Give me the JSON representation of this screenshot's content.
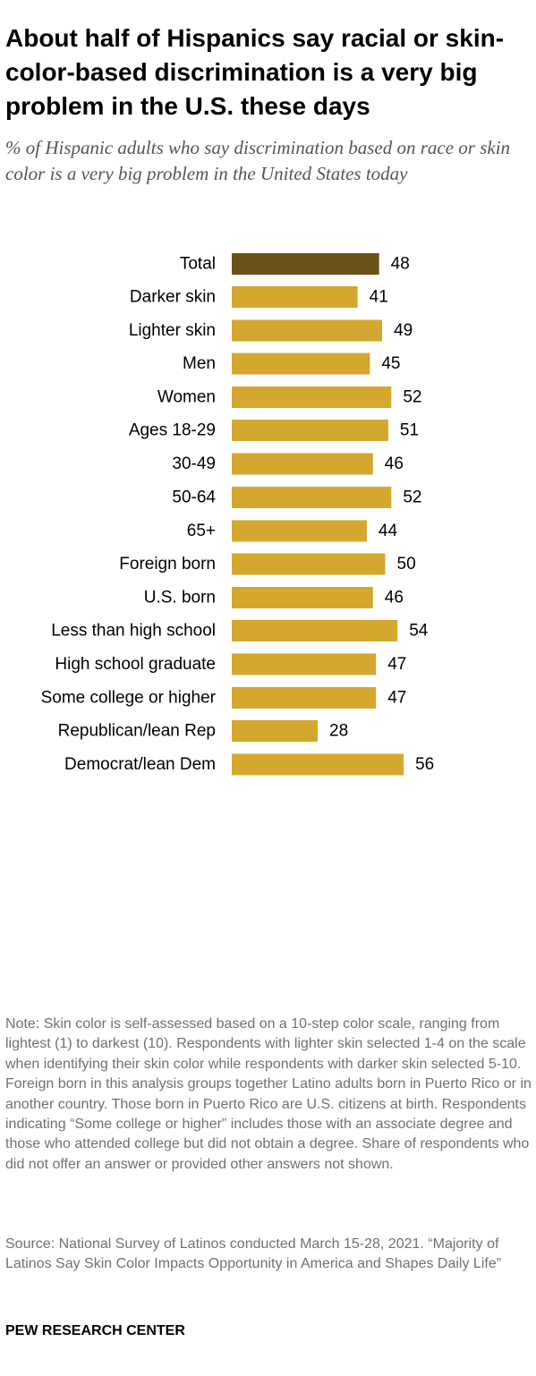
{
  "title": "About half of Hispanics say racial or skin-color-based discrimination is a very big problem in the U.S. these days",
  "subtitle": "% of Hispanic adults who say discrimination based on race or skin color is a very big problem in the United States today",
  "colors": {
    "total_bar": "#6b5219",
    "group_bar": "#d4a82f",
    "text": "#000000",
    "muted_text": "#707070"
  },
  "chart_data": {
    "type": "bar",
    "orientation": "horizontal",
    "categories": [
      "Total",
      "Darker skin",
      "Lighter skin",
      "Men",
      "Women",
      "Ages 18-29",
      "30-49",
      "50-64",
      "65+",
      "Foreign born",
      "U.S. born",
      "Less than high school",
      "High school graduate",
      "Some college or higher",
      "Republican/lean Rep",
      "Democrat/lean Dem"
    ],
    "values": [
      48,
      41,
      49,
      45,
      52,
      51,
      46,
      52,
      44,
      50,
      46,
      54,
      47,
      47,
      28,
      56
    ],
    "groups": [
      [
        "Total"
      ],
      [
        "Darker skin",
        "Lighter skin"
      ],
      [
        "Men",
        "Women"
      ],
      [
        "Ages 18-29",
        "30-49",
        "50-64",
        "65+"
      ],
      [
        "Foreign born",
        "U.S. born"
      ],
      [
        "Less than high school",
        "High school graduate",
        "Some college or higher"
      ],
      [
        "Republican/lean Rep",
        "Democrat/lean Dem"
      ]
    ],
    "highlighted_category": "Total",
    "xlim": [
      0,
      100
    ],
    "grid": false,
    "data_labels": true,
    "title": "",
    "xlabel": "",
    "ylabel": ""
  },
  "note": "Note: Skin color is self-assessed based on a 10-step color scale, ranging from lightest (1) to darkest (10). Respondents with lighter skin selected 1-4 on the scale when identifying their skin color while respondents with darker skin selected 5-10. Foreign born in this analysis groups together Latino adults born in Puerto Rico or in another country. Those born in Puerto Rico are U.S. citizens at birth. Respondents indicating “Some college or higher” includes those with an associate degree and those who attended college but did not obtain a degree. Share of respondents who did not offer an answer or provided other answers not shown.",
  "source": "Source: National Survey of Latinos conducted March 15-28, 2021. “Majority of Latinos Say Skin Color Impacts Opportunity in America and Shapes Daily Life”",
  "organization": "PEW RESEARCH CENTER"
}
